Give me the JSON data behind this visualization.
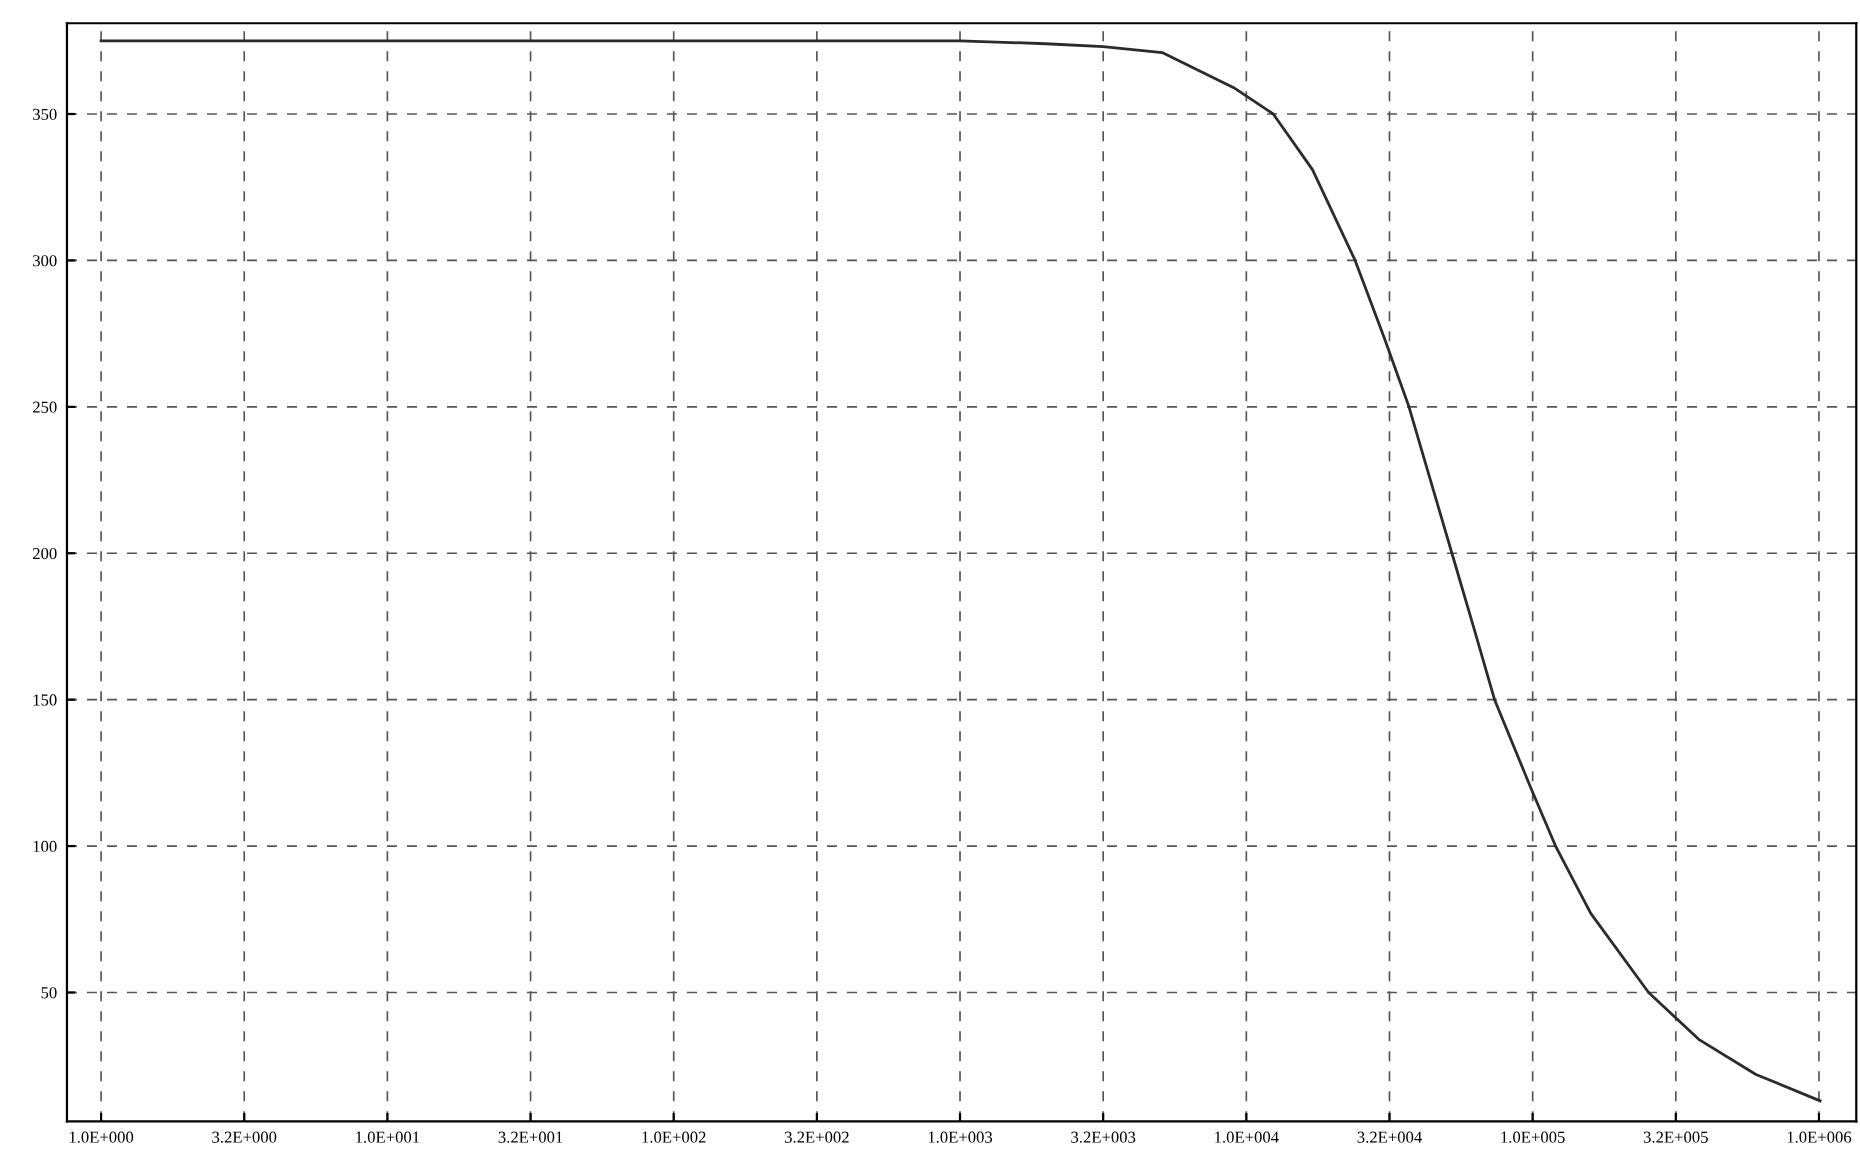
{
  "chart_data": {
    "type": "line",
    "log": "x",
    "grid": true,
    "line_style": "solid",
    "marker": "none",
    "x": [
      1,
      1000,
      1995,
      3162,
      5082,
      9036,
      12417,
      17022,
      23988,
      30200,
      36983,
      43954,
      52240,
      62087,
      73621,
      98401,
      120226,
      159588,
      254097,
      380189,
      602560,
      1009253
    ],
    "series": [
      {
        "color": "#2b2b2b",
        "values": [
          375,
          375,
          374,
          373,
          371,
          359,
          350,
          331,
          300,
          274,
          250,
          225,
          200,
          175,
          150,
          120,
          100,
          77,
          50,
          34,
          22,
          13
        ]
      }
    ],
    "xlim": [
      0.76,
      1350000
    ],
    "ylim": [
      6,
      381
    ],
    "xticks": [
      {
        "value": 1,
        "label": "1.0E+000"
      },
      {
        "value": 3.1623,
        "label": "3.2E+000"
      },
      {
        "value": 10,
        "label": "1.0E+001"
      },
      {
        "value": 31.623,
        "label": "3.2E+001"
      },
      {
        "value": 100,
        "label": "1.0E+002"
      },
      {
        "value": 316.23,
        "label": "3.2E+002"
      },
      {
        "value": 1000,
        "label": "1.0E+003"
      },
      {
        "value": 3162.3,
        "label": "3.2E+003"
      },
      {
        "value": 10000,
        "label": "1.0E+004"
      },
      {
        "value": 31623,
        "label": "3.2E+004"
      },
      {
        "value": 100000,
        "label": "1.0E+005"
      },
      {
        "value": 316230,
        "label": "3.2E+005"
      },
      {
        "value": 1000000,
        "label": "1.0E+006"
      }
    ],
    "yticks": [
      50,
      100,
      150,
      200,
      250,
      300,
      350
    ]
  }
}
